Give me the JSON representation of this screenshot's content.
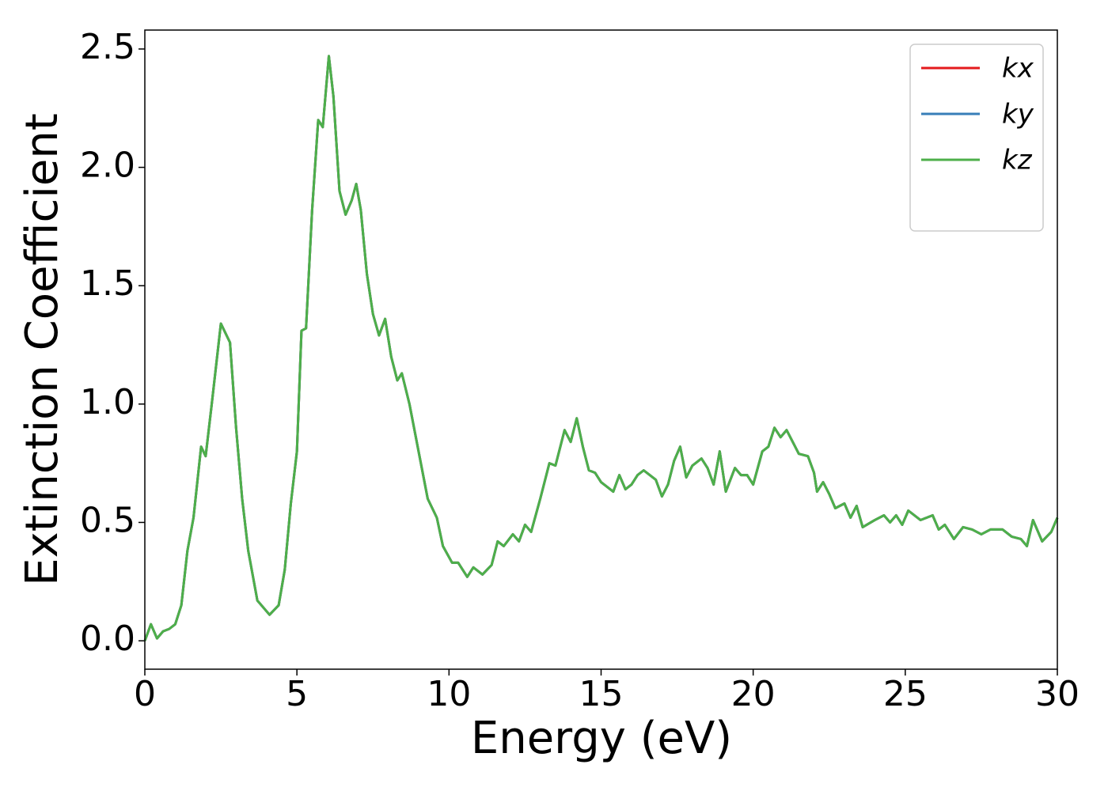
{
  "chart_data": {
    "type": "line",
    "xlabel": "Energy (eV)",
    "ylabel": "Extinction Coefficient",
    "xlim": [
      0,
      30
    ],
    "ylim": [
      -0.12,
      2.58
    ],
    "xticks": [
      0,
      5,
      10,
      15,
      20,
      25,
      30
    ],
    "yticks": [
      {
        "value": 0,
        "label": "0.0"
      },
      0.5,
      {
        "value": 1,
        "label": "1.0"
      },
      1.5,
      {
        "value": 2,
        "label": "2.0"
      },
      2.5
    ],
    "grid": false,
    "legend": "upper right",
    "x": [
      0,
      0.2,
      0.4,
      0.6,
      0.8,
      1.0,
      1.2,
      1.4,
      1.6,
      1.85,
      2.0,
      2.2,
      2.5,
      2.8,
      3.0,
      3.2,
      3.4,
      3.7,
      4.1,
      4.4,
      4.6,
      4.8,
      5.0,
      5.15,
      5.3,
      5.5,
      5.7,
      5.85,
      6.05,
      6.2,
      6.4,
      6.6,
      6.8,
      6.95,
      7.1,
      7.3,
      7.5,
      7.7,
      7.9,
      8.1,
      8.3,
      8.45,
      8.7,
      9.0,
      9.3,
      9.6,
      9.8,
      10.1,
      10.3,
      10.6,
      10.8,
      11.1,
      11.4,
      11.6,
      11.8,
      12.1,
      12.3,
      12.5,
      12.7,
      13.0,
      13.3,
      13.5,
      13.8,
      14.0,
      14.2,
      14.4,
      14.6,
      14.8,
      15.0,
      15.2,
      15.4,
      15.6,
      15.8,
      16.0,
      16.2,
      16.4,
      16.6,
      16.8,
      17.0,
      17.2,
      17.4,
      17.6,
      17.8,
      18.0,
      18.3,
      18.5,
      18.7,
      18.9,
      19.1,
      19.4,
      19.6,
      19.8,
      20.0,
      20.3,
      20.5,
      20.7,
      20.9,
      21.1,
      21.3,
      21.5,
      21.8,
      22.0,
      22.1,
      22.3,
      22.5,
      22.7,
      23.0,
      23.2,
      23.4,
      23.6,
      24.0,
      24.3,
      24.5,
      24.7,
      24.9,
      25.1,
      25.5,
      25.9,
      26.1,
      26.3,
      26.6,
      26.9,
      27.2,
      27.5,
      27.8,
      28.2,
      28.5,
      28.8,
      29.0,
      29.2,
      29.5,
      29.8,
      30.0
    ],
    "series": [
      {
        "name": "kx",
        "color": "#e41a1c",
        "values": [
          0.0,
          0.07,
          0.01,
          0.04,
          0.05,
          0.07,
          0.15,
          0.38,
          0.52,
          0.82,
          0.78,
          1.0,
          1.34,
          1.26,
          0.9,
          0.6,
          0.38,
          0.17,
          0.11,
          0.15,
          0.3,
          0.58,
          0.8,
          1.31,
          1.32,
          1.82,
          2.2,
          2.17,
          2.47,
          2.3,
          1.9,
          1.8,
          1.86,
          1.93,
          1.82,
          1.55,
          1.38,
          1.29,
          1.36,
          1.2,
          1.1,
          1.13,
          1.0,
          0.8,
          0.6,
          0.52,
          0.4,
          0.33,
          0.33,
          0.27,
          0.31,
          0.28,
          0.32,
          0.42,
          0.4,
          0.45,
          0.42,
          0.49,
          0.46,
          0.6,
          0.75,
          0.74,
          0.89,
          0.84,
          0.94,
          0.82,
          0.72,
          0.71,
          0.67,
          0.65,
          0.63,
          0.7,
          0.64,
          0.66,
          0.7,
          0.72,
          0.7,
          0.68,
          0.61,
          0.66,
          0.76,
          0.82,
          0.69,
          0.74,
          0.77,
          0.73,
          0.66,
          0.8,
          0.63,
          0.73,
          0.7,
          0.7,
          0.66,
          0.8,
          0.82,
          0.9,
          0.86,
          0.89,
          0.84,
          0.79,
          0.78,
          0.71,
          0.63,
          0.67,
          0.62,
          0.56,
          0.58,
          0.52,
          0.57,
          0.48,
          0.51,
          0.53,
          0.5,
          0.53,
          0.49,
          0.55,
          0.51,
          0.53,
          0.47,
          0.49,
          0.43,
          0.48,
          0.47,
          0.45,
          0.47,
          0.47,
          0.44,
          0.43,
          0.4,
          0.51,
          0.42,
          0.46,
          0.52
        ]
      },
      {
        "name": "ky",
        "color": "#377eb8",
        "values": [
          0.0,
          0.07,
          0.01,
          0.04,
          0.05,
          0.07,
          0.15,
          0.38,
          0.52,
          0.82,
          0.78,
          1.0,
          1.34,
          1.26,
          0.9,
          0.6,
          0.38,
          0.17,
          0.11,
          0.15,
          0.3,
          0.58,
          0.8,
          1.31,
          1.32,
          1.82,
          2.2,
          2.17,
          2.47,
          2.3,
          1.9,
          1.8,
          1.86,
          1.93,
          1.82,
          1.55,
          1.38,
          1.29,
          1.36,
          1.2,
          1.1,
          1.13,
          1.0,
          0.8,
          0.6,
          0.52,
          0.4,
          0.33,
          0.33,
          0.27,
          0.31,
          0.28,
          0.32,
          0.42,
          0.4,
          0.45,
          0.42,
          0.49,
          0.46,
          0.6,
          0.75,
          0.74,
          0.89,
          0.84,
          0.94,
          0.82,
          0.72,
          0.71,
          0.67,
          0.65,
          0.63,
          0.7,
          0.64,
          0.66,
          0.7,
          0.72,
          0.7,
          0.68,
          0.61,
          0.66,
          0.76,
          0.82,
          0.69,
          0.74,
          0.77,
          0.73,
          0.66,
          0.8,
          0.63,
          0.73,
          0.7,
          0.7,
          0.66,
          0.8,
          0.82,
          0.9,
          0.86,
          0.89,
          0.84,
          0.79,
          0.78,
          0.71,
          0.63,
          0.67,
          0.62,
          0.56,
          0.58,
          0.52,
          0.57,
          0.48,
          0.51,
          0.53,
          0.5,
          0.53,
          0.49,
          0.55,
          0.51,
          0.53,
          0.47,
          0.49,
          0.43,
          0.48,
          0.47,
          0.45,
          0.47,
          0.47,
          0.44,
          0.43,
          0.4,
          0.51,
          0.42,
          0.46,
          0.52
        ]
      },
      {
        "name": "kz",
        "color": "#4daf4a",
        "values": [
          0.0,
          0.07,
          0.01,
          0.04,
          0.05,
          0.07,
          0.15,
          0.38,
          0.52,
          0.82,
          0.78,
          1.0,
          1.34,
          1.26,
          0.9,
          0.6,
          0.38,
          0.17,
          0.11,
          0.15,
          0.3,
          0.58,
          0.8,
          1.31,
          1.32,
          1.82,
          2.2,
          2.17,
          2.47,
          2.3,
          1.9,
          1.8,
          1.86,
          1.93,
          1.82,
          1.55,
          1.38,
          1.29,
          1.36,
          1.2,
          1.1,
          1.13,
          1.0,
          0.8,
          0.6,
          0.52,
          0.4,
          0.33,
          0.33,
          0.27,
          0.31,
          0.28,
          0.32,
          0.42,
          0.4,
          0.45,
          0.42,
          0.49,
          0.46,
          0.6,
          0.75,
          0.74,
          0.89,
          0.84,
          0.94,
          0.82,
          0.72,
          0.71,
          0.67,
          0.65,
          0.63,
          0.7,
          0.64,
          0.66,
          0.7,
          0.72,
          0.7,
          0.68,
          0.61,
          0.66,
          0.76,
          0.82,
          0.69,
          0.74,
          0.77,
          0.73,
          0.66,
          0.8,
          0.63,
          0.73,
          0.7,
          0.7,
          0.66,
          0.8,
          0.82,
          0.9,
          0.86,
          0.89,
          0.84,
          0.79,
          0.78,
          0.71,
          0.63,
          0.67,
          0.62,
          0.56,
          0.58,
          0.52,
          0.57,
          0.48,
          0.51,
          0.53,
          0.5,
          0.53,
          0.49,
          0.55,
          0.51,
          0.53,
          0.47,
          0.49,
          0.43,
          0.48,
          0.47,
          0.45,
          0.47,
          0.47,
          0.44,
          0.43,
          0.4,
          0.51,
          0.42,
          0.46,
          0.52
        ]
      }
    ]
  }
}
